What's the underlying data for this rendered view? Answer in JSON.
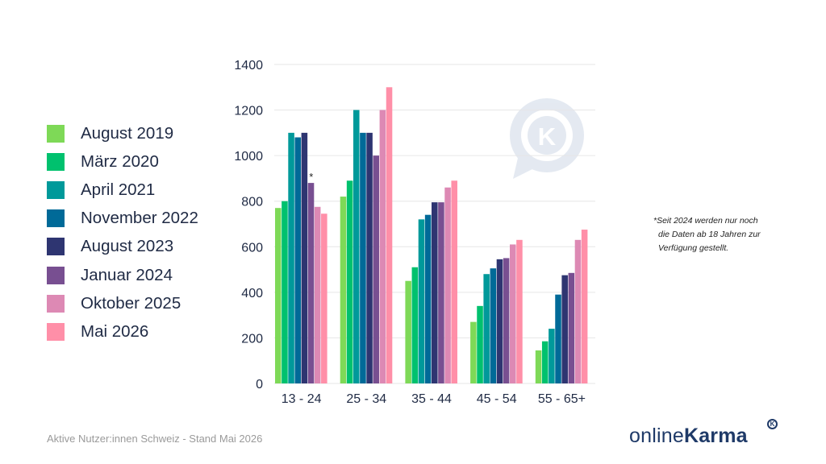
{
  "chart_data": {
    "type": "bar",
    "categories": [
      "13 - 24",
      "25 - 34",
      "35 - 44",
      "45 - 54",
      "55 - 65+"
    ],
    "series": [
      {
        "name": "August 2019",
        "color": "#7ed957",
        "values": [
          770,
          820,
          450,
          270,
          145
        ]
      },
      {
        "name": "März 2020",
        "color": "#00c16e",
        "values": [
          800,
          890,
          510,
          340,
          185
        ]
      },
      {
        "name": "April 2021",
        "color": "#00999a",
        "values": [
          1100,
          1200,
          720,
          480,
          240
        ]
      },
      {
        "name": "November 2022",
        "color": "#006a98",
        "values": [
          1080,
          1100,
          740,
          505,
          390
        ]
      },
      {
        "name": "August 2023",
        "color": "#2e3571",
        "values": [
          1100,
          1100,
          795,
          545,
          475
        ]
      },
      {
        "name": "Januar 2024",
        "color": "#784f91",
        "values": [
          880,
          1000,
          795,
          550,
          485
        ]
      },
      {
        "name": "Oktober 2025",
        "color": "#dd89b4",
        "values": [
          775,
          1200,
          860,
          610,
          630
        ]
      },
      {
        "name": "Mai 2026",
        "color": "#ff8fa8",
        "values": [
          745,
          1300,
          890,
          630,
          675
        ]
      }
    ],
    "yticks": [
      0,
      200,
      400,
      600,
      800,
      1000,
      1200,
      1400
    ],
    "ylim": [
      0,
      1400
    ],
    "grid": true,
    "legend_position": "left",
    "annotations": [
      {
        "text": "*",
        "category": "13 - 24",
        "series": "Januar 2024"
      }
    ]
  },
  "legend": {
    "items": [
      "August 2019",
      "März 2020",
      "April 2021",
      "November 2022",
      "August 2023",
      "Januar 2024",
      "Oktober 2025",
      "Mai 2026"
    ]
  },
  "footnote": {
    "lines": [
      "*Seit 2024 werden nur noch",
      "die Daten ab 18 Jahren zur",
      "Verfügung gestellt."
    ]
  },
  "footer": {
    "text": "Aktive Nutzer:innen Schweiz - Stand Mai 2026"
  },
  "brand": {
    "prefix": "online",
    "bold": "Karma",
    "mark": "K",
    "watermark_letter": "K"
  }
}
